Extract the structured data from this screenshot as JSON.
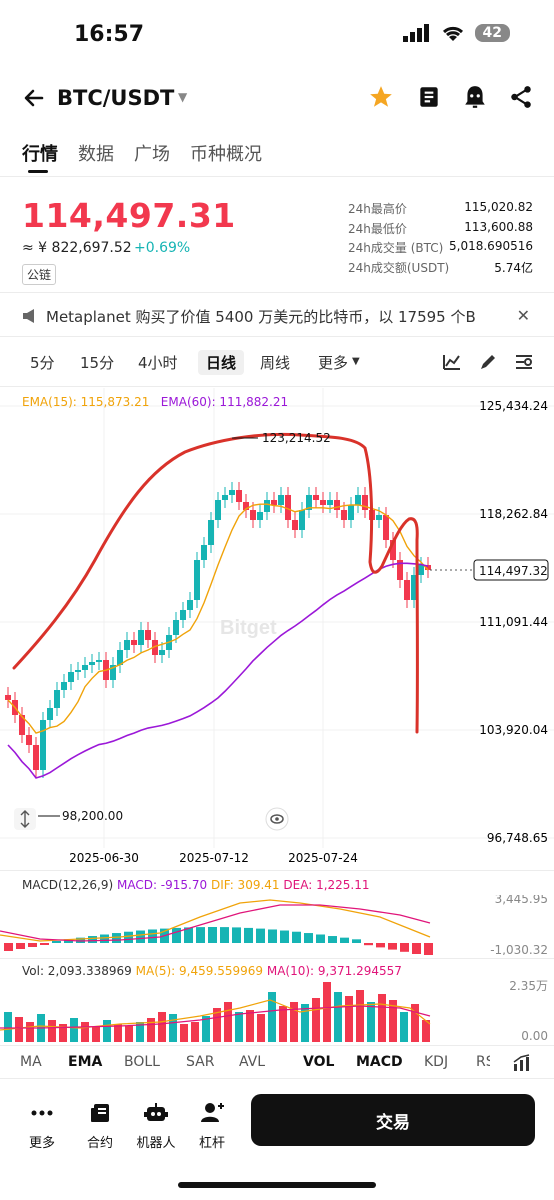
{
  "status_bar": {
    "time": "16:57",
    "battery": "42"
  },
  "header": {
    "pair": "BTC/USDT"
  },
  "tabs": [
    {
      "label": "行情",
      "active": true
    },
    {
      "label": "数据"
    },
    {
      "label": "广场"
    },
    {
      "label": "币种概况"
    }
  ],
  "price": {
    "last": "114,497.31",
    "cny": "≈ ¥ 822,697.52",
    "change": "+0.69%",
    "chain_badge": "公链"
  },
  "stats": [
    {
      "label": "24h最高价",
      "value": "115,020.82"
    },
    {
      "label": "24h最低价",
      "value": "113,600.88"
    },
    {
      "label": "24h成交量 (BTC)",
      "value": "5,018.690516"
    },
    {
      "label": "24h成交额(USDT)",
      "value": "5.74亿"
    }
  ],
  "news": {
    "text": "Metaplanet 购买了价值 5400 万美元的比特币，以 17595 个B..."
  },
  "intervals": [
    "5分",
    "15分",
    "4小时",
    "日线",
    "周线",
    "更多"
  ],
  "active_interval": "日线",
  "chart": {
    "ema15_label": "EMA(15): 115,873.21",
    "ema60_label": "EMA(60): 111,882.21",
    "y_ticks": [
      "125,434.24",
      "118,262.84",
      "111,091.44",
      "103,920.04",
      "96,748.65"
    ],
    "x_ticks": [
      "2025-06-30",
      "2025-07-12",
      "2025-07-24"
    ],
    "high_marker": "123,214.52",
    "low_marker": "98,200.00",
    "current_price_tag": "114,497.32",
    "watermark": "Bitget"
  },
  "macd": {
    "title": "MACD(12,26,9)",
    "macd": "MACD: -915.70",
    "dif": "DIF: 309.41",
    "dea": "DEA: 1,225.11",
    "y_top": "3,445.95",
    "y_bottom": "-1,030.32"
  },
  "volume": {
    "vol": "Vol: 2,093.338969",
    "ma5": "MA(5): 9,459.559969",
    "ma10": "MA(10): 9,371.294557",
    "y_top": "2.35万",
    "y_bottom": "0.00"
  },
  "indicators": [
    "MA",
    "EMA",
    "BOLL",
    "SAR",
    "AVL",
    "VOL",
    "MACD",
    "KDJ",
    "RSI"
  ],
  "bottom_nav": [
    {
      "label": "更多",
      "icon": "more-icon"
    },
    {
      "label": "合约",
      "icon": "contract-icon"
    },
    {
      "label": "机器人",
      "icon": "robot-icon"
    },
    {
      "label": "杠杆",
      "icon": "leverage-icon"
    }
  ],
  "trade_button": "交易",
  "colors": {
    "up": "#16b4b4",
    "down": "#f2384e",
    "ema15": "#f0a30a",
    "ema60": "#9b18d8"
  }
}
